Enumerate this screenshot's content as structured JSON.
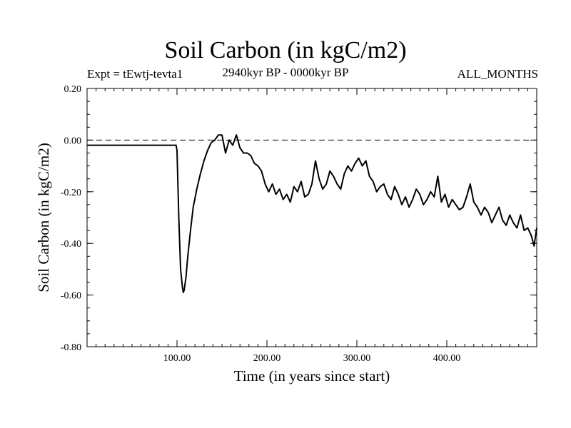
{
  "chart_data": {
    "type": "line",
    "title": "Soil Carbon (in kgC/m2)",
    "subtitle_left": "Expt = tEwtj-tevta1",
    "subtitle_center": "2940kyr BP - 0000kyr BP",
    "subtitle_right": "ALL_MONTHS",
    "xlabel": "Time (in years since start)",
    "ylabel": "Soil Carbon (in kgC/m2)",
    "xlim": [
      0,
      500
    ],
    "ylim": [
      -0.8,
      0.2
    ],
    "x_ticks": [
      {
        "value": 100,
        "label": "100.00"
      },
      {
        "value": 200,
        "label": "200.00"
      },
      {
        "value": 300,
        "label": "300.00"
      },
      {
        "value": 400,
        "label": "400.00"
      }
    ],
    "y_ticks": [
      {
        "value": 0.2,
        "label": "0.20"
      },
      {
        "value": 0.0,
        "label": "0.00"
      },
      {
        "value": -0.2,
        "label": "-0.20"
      },
      {
        "value": -0.4,
        "label": "-0.40"
      },
      {
        "value": -0.6,
        "label": "-0.60"
      },
      {
        "value": -0.8,
        "label": "-0.80"
      }
    ],
    "reference_line": {
      "y": 0.0,
      "style": "dashed"
    },
    "grid": false,
    "series": [
      {
        "name": "Soil Carbon",
        "x": [
          0,
          99,
          100,
          102,
          104,
          106,
          107,
          108,
          110,
          112,
          115,
          118,
          122,
          126,
          130,
          134,
          138,
          142,
          146,
          150,
          154,
          158,
          162,
          166,
          170,
          174,
          178,
          182,
          186,
          190,
          194,
          198,
          202,
          206,
          210,
          214,
          218,
          222,
          226,
          230,
          234,
          238,
          242,
          246,
          250,
          254,
          258,
          262,
          266,
          270,
          274,
          278,
          282,
          286,
          290,
          294,
          298,
          302,
          306,
          310,
          314,
          318,
          322,
          326,
          330,
          334,
          338,
          342,
          346,
          350,
          354,
          358,
          362,
          366,
          370,
          374,
          378,
          382,
          386,
          390,
          394,
          398,
          402,
          406,
          410,
          414,
          418,
          422,
          426,
          430,
          434,
          438,
          442,
          446,
          450,
          454,
          458,
          462,
          466,
          470,
          474,
          478,
          482,
          486,
          490,
          494,
          497,
          500
        ],
        "values": [
          -0.02,
          -0.02,
          -0.04,
          -0.3,
          -0.5,
          -0.57,
          -0.59,
          -0.58,
          -0.53,
          -0.45,
          -0.35,
          -0.26,
          -0.19,
          -0.13,
          -0.08,
          -0.04,
          -0.01,
          0.0,
          0.02,
          0.02,
          -0.05,
          0.0,
          -0.02,
          0.02,
          -0.03,
          -0.05,
          -0.05,
          -0.06,
          -0.09,
          -0.1,
          -0.12,
          -0.17,
          -0.2,
          -0.17,
          -0.21,
          -0.19,
          -0.23,
          -0.21,
          -0.24,
          -0.18,
          -0.2,
          -0.16,
          -0.22,
          -0.21,
          -0.17,
          -0.08,
          -0.15,
          -0.19,
          -0.17,
          -0.12,
          -0.14,
          -0.17,
          -0.19,
          -0.13,
          -0.1,
          -0.12,
          -0.09,
          -0.07,
          -0.1,
          -0.08,
          -0.14,
          -0.16,
          -0.2,
          -0.18,
          -0.17,
          -0.21,
          -0.23,
          -0.18,
          -0.21,
          -0.25,
          -0.22,
          -0.26,
          -0.23,
          -0.19,
          -0.21,
          -0.25,
          -0.23,
          -0.2,
          -0.22,
          -0.14,
          -0.24,
          -0.21,
          -0.26,
          -0.23,
          -0.25,
          -0.27,
          -0.26,
          -0.22,
          -0.17,
          -0.24,
          -0.26,
          -0.29,
          -0.26,
          -0.28,
          -0.32,
          -0.29,
          -0.26,
          -0.31,
          -0.33,
          -0.29,
          -0.32,
          -0.34,
          -0.29,
          -0.35,
          -0.34,
          -0.37,
          -0.41,
          -0.34
        ]
      }
    ]
  }
}
